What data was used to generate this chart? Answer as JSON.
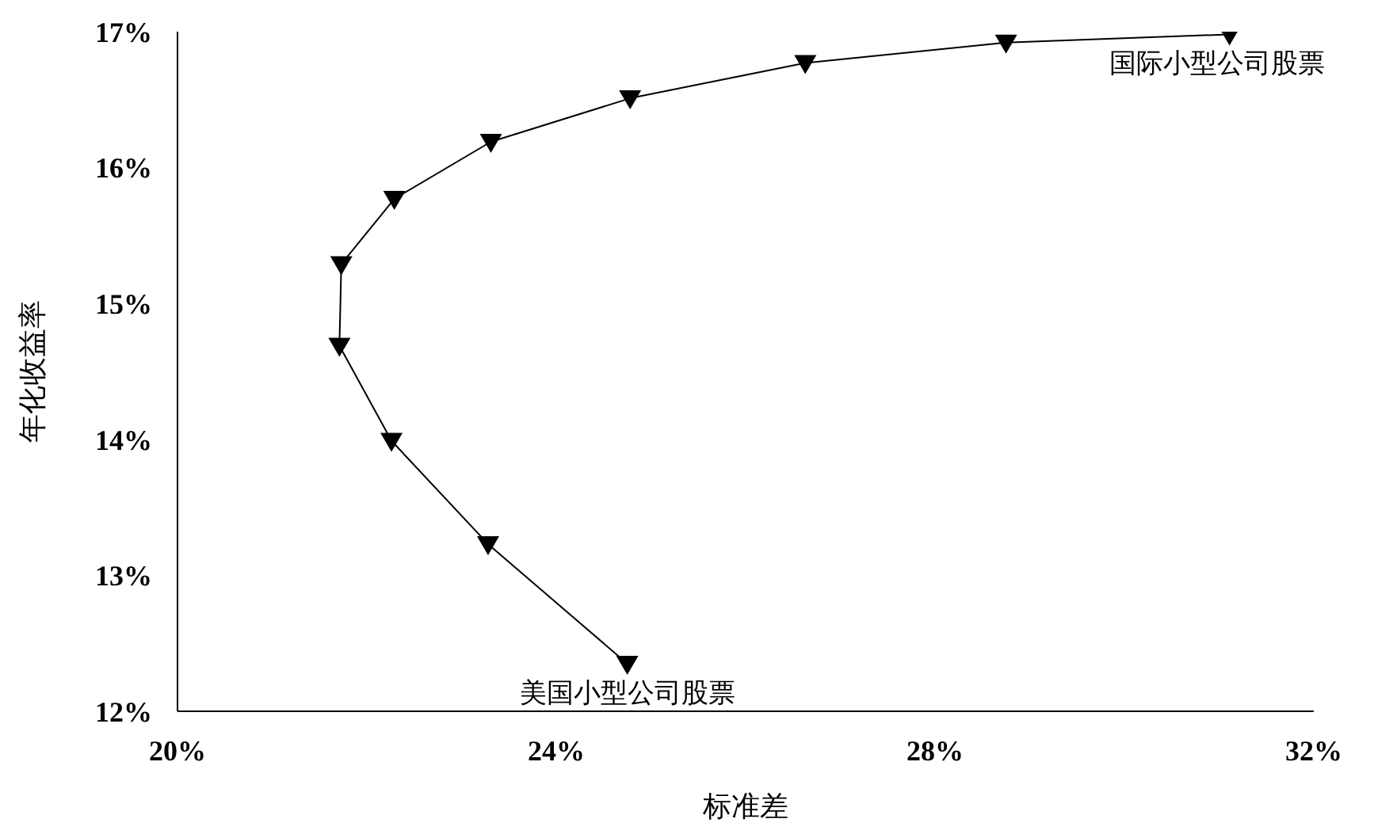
{
  "chart_data": {
    "type": "line",
    "xlabel": "标准差",
    "ylabel": "年化收益率",
    "x": [
      24.75,
      23.28,
      22.26,
      21.71,
      21.73,
      22.29,
      23.31,
      24.78,
      26.63,
      28.75,
      31.11
    ],
    "series": [
      {
        "color": "#000000",
        "values": [
          12.35,
          13.23,
          13.99,
          14.69,
          15.29,
          15.77,
          16.19,
          16.51,
          16.77,
          16.92,
          16.98
        ]
      }
    ],
    "xlim": [
      20,
      32
    ],
    "xticks": [
      {
        "value": 20,
        "label": "20%"
      },
      {
        "value": 24,
        "label": "24%"
      },
      {
        "value": 28,
        "label": "28%"
      },
      {
        "value": 32,
        "label": "32%"
      }
    ],
    "ylim": [
      12,
      17
    ],
    "yticks": [
      {
        "value": 12,
        "label": "12%"
      },
      {
        "value": 13,
        "label": "13%"
      },
      {
        "value": 14,
        "label": "14%"
      },
      {
        "value": 15,
        "label": "15%"
      },
      {
        "value": 16,
        "label": "16%"
      },
      {
        "value": 17,
        "label": "17%"
      }
    ],
    "grid": false,
    "legend": false,
    "marker": "triangle",
    "line_style": "solid",
    "annotations": [
      {
        "text": "美国小型公司股票",
        "x": 24.75,
        "y": 12.35
      },
      {
        "text": "国际小型公司股票",
        "x": 31.11,
        "y": 16.98
      }
    ]
  }
}
